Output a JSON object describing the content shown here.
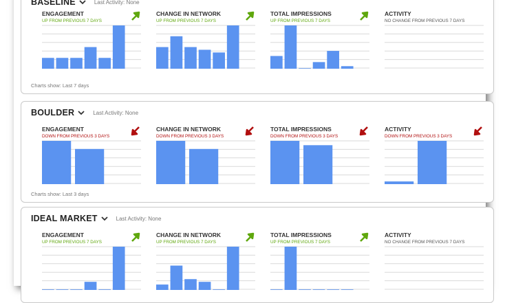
{
  "colors": {
    "bar": "#5b93f0",
    "up": "#5fa70d",
    "down": "#b10f0f",
    "grid": "#d9d9d9"
  },
  "panels": [
    {
      "name": "BASELINE",
      "last_activity": "Last Activity: None",
      "footer": "Charts show: Last 7 days",
      "metrics": [
        {
          "title": "ENGAGEMENT",
          "status": "UP FROM PREVIOUS 7 DAYS",
          "trend": "up",
          "chart_data": {
            "type": "bar",
            "values": [
              2,
              2,
              2,
              4,
              2,
              8
            ],
            "ylim": [
              0,
              8
            ]
          }
        },
        {
          "title": "CHANGE IN NETWORK",
          "status": "UP FROM PREVIOUS 7 DAYS",
          "trend": "up",
          "chart_data": {
            "type": "bar",
            "values": [
              4,
              6,
              4,
              3.5,
              3,
              8
            ],
            "ylim": [
              0,
              8
            ]
          }
        },
        {
          "title": "TOTAL IMPRESSIONS",
          "status": "UP FROM PREVIOUS 7 DAYS",
          "trend": "up",
          "chart_data": {
            "type": "bar",
            "values": [
              2.5,
              8.5,
              0.1,
              1.3,
              3.5,
              0.5
            ],
            "ylim": [
              0,
              8.5
            ]
          }
        },
        {
          "title": "ACTIVITY",
          "status": "NO CHANGE FROM PREVIOUS 7 DAYS",
          "trend": "none",
          "chart_data": {
            "type": "bar",
            "values": [],
            "ylim": [
              0,
              8
            ]
          }
        }
      ]
    },
    {
      "name": "BOULDER",
      "last_activity": "Last Activity: None",
      "footer": "Charts show: Last 3 days",
      "metrics": [
        {
          "title": "ENGAGEMENT",
          "status": "DOWN FROM PREVIOUS 3 DAYS",
          "trend": "down",
          "chart_data": {
            "type": "bar",
            "values": [
              8,
              6.5
            ],
            "ylim": [
              0,
              8
            ]
          }
        },
        {
          "title": "CHANGE IN NETWORK",
          "status": "DOWN FROM PREVIOUS 3 DAYS",
          "trend": "down",
          "chart_data": {
            "type": "bar",
            "values": [
              8,
              6.5
            ],
            "ylim": [
              0,
              8
            ]
          }
        },
        {
          "title": "TOTAL IMPRESSIONS",
          "status": "DOWN FROM PREVIOUS 3 DAYS",
          "trend": "down",
          "chart_data": {
            "type": "bar",
            "values": [
              8,
              7.2
            ],
            "ylim": [
              0,
              8
            ]
          }
        },
        {
          "title": "ACTIVITY",
          "status": "DOWN FROM PREVIOUS 3 DAYS",
          "trend": "down",
          "chart_data": {
            "type": "bar",
            "values": [
              0.5,
              8
            ],
            "ylim": [
              0,
              8
            ]
          }
        }
      ]
    },
    {
      "name": "IDEAL MARKET",
      "last_activity": "Last Activity: None",
      "footer": "",
      "metrics": [
        {
          "title": "ENGAGEMENT",
          "status": "UP FROM PREVIOUS 7 DAYS",
          "trend": "up",
          "chart_data": {
            "type": "bar",
            "values": [
              0.1,
              0.1,
              0.1,
              1.5,
              0.1,
              8
            ],
            "ylim": [
              0,
              8
            ]
          }
        },
        {
          "title": "CHANGE IN NETWORK",
          "status": "UP FROM PREVIOUS 7 DAYS",
          "trend": "up",
          "chart_data": {
            "type": "bar",
            "values": [
              1,
              4.5,
              2,
              1.5,
              0.1,
              8
            ],
            "ylim": [
              0,
              8
            ]
          }
        },
        {
          "title": "TOTAL IMPRESSIONS",
          "status": "UP FROM PREVIOUS 7 DAYS",
          "trend": "up",
          "chart_data": {
            "type": "bar",
            "values": [
              0.1,
              8,
              0.1,
              0.1,
              0.1,
              0.1
            ],
            "ylim": [
              0,
              8
            ]
          }
        },
        {
          "title": "ACTIVITY",
          "status": "NO CHANGE FROM PREVIOUS 7 DAYS",
          "trend": "none",
          "chart_data": {
            "type": "bar",
            "values": [],
            "ylim": [
              0,
              8
            ]
          }
        }
      ]
    }
  ]
}
